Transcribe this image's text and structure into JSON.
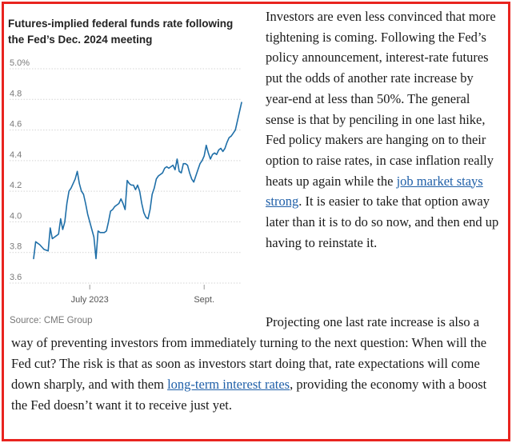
{
  "chart_data": {
    "type": "line",
    "title": "Futures-implied federal funds rate following the Fed’s Dec. 2024 meeting",
    "ylim": [
      3.6,
      5.0
    ],
    "yticks": [
      {
        "value": 5.0,
        "label": "5.0%"
      },
      {
        "value": 4.8,
        "label": "4.8"
      },
      {
        "value": 4.6,
        "label": "4.6"
      },
      {
        "value": 4.4,
        "label": "4.4"
      },
      {
        "value": 4.2,
        "label": "4.2"
      },
      {
        "value": 4.0,
        "label": "4.0"
      },
      {
        "value": 3.8,
        "label": "3.8"
      },
      {
        "value": 3.6,
        "label": "3.6"
      }
    ],
    "xlim": [
      0,
      100
    ],
    "xticks": [
      {
        "value": 27,
        "label": "July 2023"
      },
      {
        "value": 82,
        "label": "Sept."
      }
    ],
    "grid": true,
    "color": "#1f6fa8",
    "series": [
      {
        "name": "Futures-implied federal funds rate",
        "x": [
          0,
          1,
          3,
          5,
          7,
          8,
          9,
          10,
          11,
          12,
          13,
          14,
          15,
          16,
          17,
          18,
          19,
          20,
          21,
          22,
          23,
          24,
          25,
          26,
          27,
          28,
          29,
          30,
          31,
          32,
          33,
          34,
          35,
          36,
          37,
          38,
          39,
          40,
          41,
          42,
          43,
          44,
          45,
          46,
          47,
          48,
          49,
          50,
          51,
          52,
          53,
          54,
          55,
          56,
          57,
          58,
          59,
          60,
          61,
          62,
          63,
          64,
          65,
          66,
          67,
          68,
          69,
          70,
          71,
          72,
          73,
          74,
          75,
          76,
          77,
          78,
          79,
          80,
          81,
          82,
          83,
          84,
          85,
          86,
          87,
          88,
          89,
          90,
          91,
          92,
          93,
          94,
          95,
          96,
          97,
          98,
          99,
          100
        ],
        "values": [
          3.76,
          3.87,
          3.85,
          3.82,
          3.81,
          3.96,
          3.89,
          3.9,
          3.91,
          3.92,
          4.02,
          3.95,
          4.0,
          4.12,
          4.2,
          4.22,
          4.25,
          4.28,
          4.33,
          4.25,
          4.2,
          4.18,
          4.12,
          4.05,
          4.0,
          3.95,
          3.9,
          3.76,
          3.94,
          3.93,
          3.93,
          3.93,
          3.94,
          4.0,
          4.07,
          4.08,
          4.1,
          4.11,
          4.12,
          4.15,
          4.12,
          4.08,
          4.27,
          4.25,
          4.24,
          4.24,
          4.21,
          4.24,
          4.2,
          4.12,
          4.06,
          4.03,
          4.02,
          4.08,
          4.18,
          4.22,
          4.28,
          4.3,
          4.31,
          4.32,
          4.35,
          4.36,
          4.35,
          4.36,
          4.37,
          4.34,
          4.41,
          4.33,
          4.32,
          4.38,
          4.38,
          4.37,
          4.32,
          4.28,
          4.26,
          4.3,
          4.34,
          4.38,
          4.4,
          4.43,
          4.5,
          4.45,
          4.41,
          4.44,
          4.45,
          4.44,
          4.47,
          4.48,
          4.46,
          4.48,
          4.52,
          4.55,
          4.56,
          4.58,
          4.6,
          4.66,
          4.72,
          4.78
        ]
      }
    ],
    "source": "Source: CME Group"
  },
  "article": {
    "para1_text": "Investors are even less convinced that more tightening is coming. Following the Fed’s policy announcement, interest-rate futures put the odds of another rate increase by year-end at less than 50%. The general sense is that by penciling in one last hike, Fed policy makers are hanging on to their option to raise rates, in case inflation really heats up again while the ",
    "para1_link": "job market stays strong",
    "para1_rest": ". It is easier to take that option away later than it is to do so now, and then end up having to reinstate it.",
    "para2_text": "Projecting one last rate increase is also a way of preventing investors from immediately turning to the next question: When will the Fed cut? The risk is that as soon as investors start doing that, rate expectations will come down sharply, and with them ",
    "para2_link": "long-term interest rates",
    "para2_rest": ", providing the economy with a boost the Fed doesn’t want it to receive just yet."
  }
}
